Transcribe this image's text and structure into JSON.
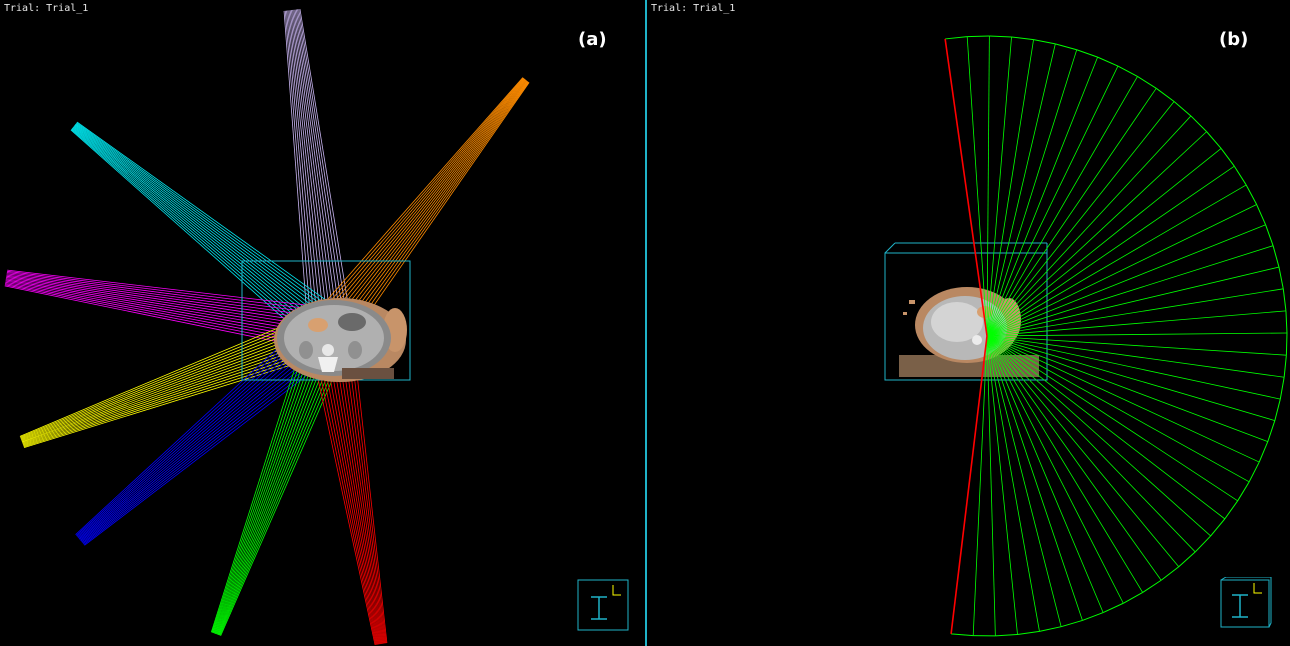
{
  "panels": [
    {
      "id": "a",
      "label": "(a)",
      "trial_label": "Trial: Trial_1",
      "beam_colors": [
        "#c8b4f0",
        "#ff8c00",
        "#00e8f0",
        "#ff00ff",
        "#ffff00",
        "#0000ff",
        "#00ff00",
        "#ff0000"
      ]
    },
    {
      "id": "b",
      "label": "(b)",
      "trial_label": "Trial: Trial_1",
      "arc_color": "#00ff00",
      "arc_edge_color": "#ff0000"
    }
  ],
  "colors": {
    "background": "#000000",
    "divider": "#1fb3c9",
    "bounding_box": "#1fb3c9",
    "skin": "#c8946a",
    "ct_gray": "#a8a8a8"
  },
  "icons": {
    "orientation": "orientation-cube-icon"
  }
}
